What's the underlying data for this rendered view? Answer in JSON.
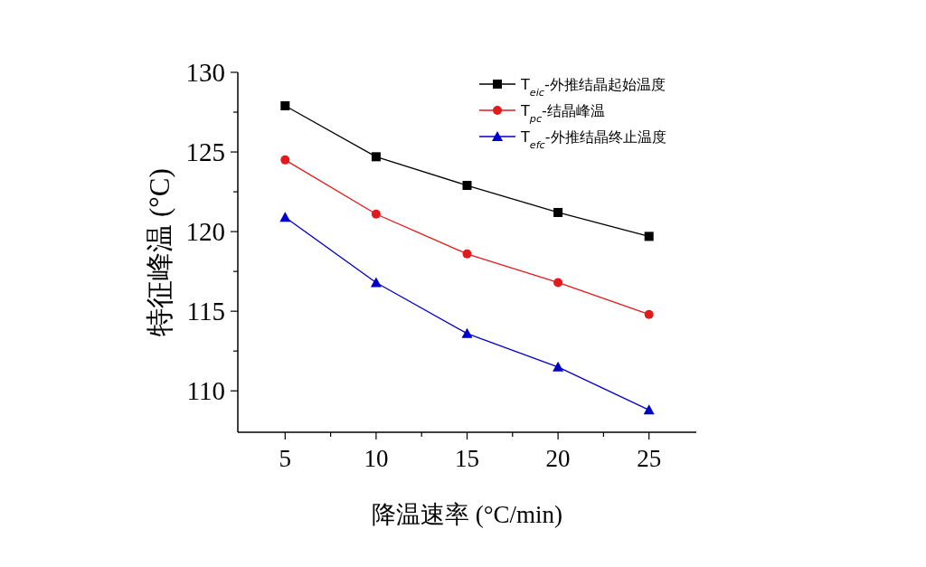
{
  "chart_data": {
    "type": "line",
    "xlabel": "降温速率 (°C/min)",
    "ylabel": "特征峰温 (°C)",
    "x": [
      5,
      10,
      15,
      20,
      25
    ],
    "series": [
      {
        "name": "T$_{eic}$-外推结晶起始温度",
        "color": "#000000",
        "marker": "square",
        "values": [
          127.9,
          124.7,
          122.9,
          121.2,
          119.7
        ]
      },
      {
        "name": "T$_{pc}$-结晶峰温",
        "color": "#e31a1c",
        "marker": "circle",
        "values": [
          124.5,
          121.1,
          118.6,
          116.8,
          114.8
        ]
      },
      {
        "name": "T$_{efc}$-外推结晶终止温度",
        "color": "#0000c8",
        "marker": "triangle",
        "values": [
          120.9,
          116.8,
          113.6,
          111.5,
          108.8
        ]
      }
    ],
    "xlim": [
      2.4,
      27.6
    ],
    "ylim": [
      107.4,
      130
    ],
    "xticks": [
      5,
      {
        "value": 7.5,
        "label": null
      },
      10,
      {
        "value": 12.5,
        "label": null
      },
      15,
      {
        "value": 17.5,
        "label": null
      },
      20,
      {
        "value": 22.5,
        "label": null
      },
      25
    ],
    "yticks": [
      110,
      {
        "value": 112.5,
        "label": null
      },
      115,
      {
        "value": 117.5,
        "label": null
      },
      120,
      {
        "value": 122.5,
        "label": null
      },
      125,
      {
        "value": 127.5,
        "label": null
      },
      130
    ],
    "grid": false,
    "legend": "top right",
    "line_style": "solid"
  }
}
